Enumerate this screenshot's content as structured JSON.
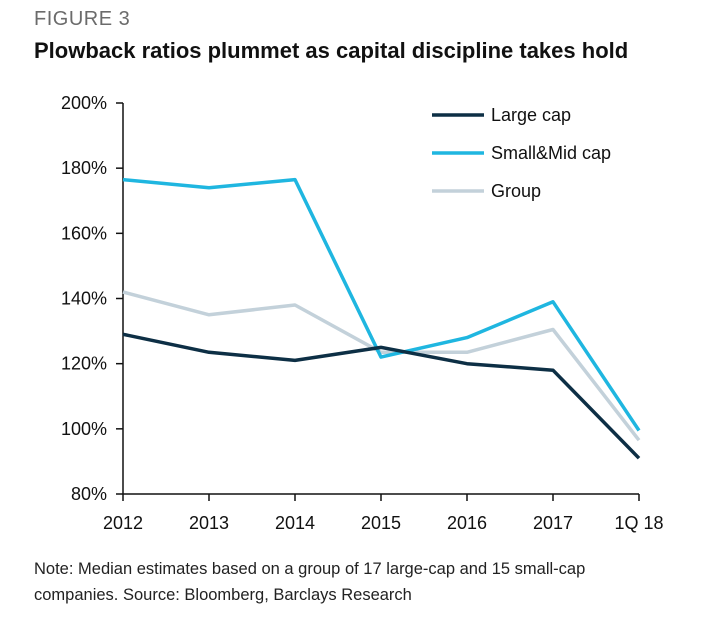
{
  "figure_label": "FIGURE 3",
  "title": "Plowback ratios plummet as capital discipline takes hold",
  "note": "Note: Median estimates based on a group of 17 large-cap and 15 small-cap companies. Source: Bloomberg, Barclays Research",
  "chart_data": {
    "type": "line",
    "title": "Plowback ratios plummet as capital discipline takes hold",
    "xlabel": "",
    "ylabel": "",
    "categories": [
      "2012",
      "2013",
      "2014",
      "2015",
      "2016",
      "2017",
      "1Q 18"
    ],
    "ylim": [
      80,
      200
    ],
    "yticks": [
      80,
      100,
      120,
      140,
      160,
      180,
      200
    ],
    "ytick_labels": [
      "80%",
      "100%",
      "120%",
      "140%",
      "160%",
      "180%",
      "200%"
    ],
    "grid": false,
    "legend_position": "top-right",
    "series": [
      {
        "name": "Large cap",
        "color": "#0d2f45",
        "values": [
          129,
          123.5,
          121,
          125,
          120,
          118,
          91
        ]
      },
      {
        "name": "Small&Mid cap",
        "color": "#1fb6e0",
        "values": [
          176.5,
          174,
          176.5,
          122,
          128,
          139,
          99.5
        ]
      },
      {
        "name": "Group",
        "color": "#c3d1da",
        "values": [
          142,
          135,
          138,
          123.5,
          123.5,
          130.5,
          96.5
        ]
      }
    ]
  }
}
